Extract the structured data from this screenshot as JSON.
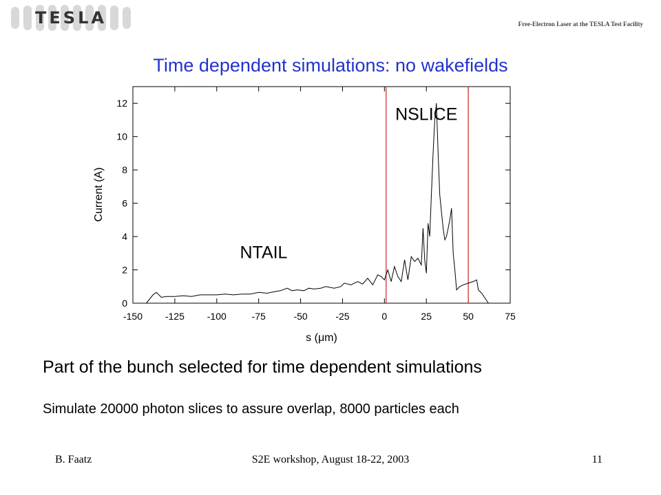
{
  "header": {
    "logo_text": "TESLA",
    "facility": "Free-Electron Laser at the TESLA Test Facility"
  },
  "slide": {
    "title": "Time dependent simulations: no wakefields",
    "body_line1": "Part of the bunch selected for time dependent simulations",
    "body_line2": "Simulate 20000 photon slices to assure overlap, 8000 particles each"
  },
  "footer": {
    "author": "B. Faatz",
    "event": "S2E workshop, August 18-22, 2003",
    "page": "11"
  },
  "chart_data": {
    "type": "line",
    "title": "",
    "xlabel": "s (μm)",
    "ylabel": "Current (A)",
    "xlim": [
      -150,
      75
    ],
    "ylim": [
      0,
      13
    ],
    "xticks": [
      -150,
      -125,
      -100,
      -75,
      -50,
      -25,
      0,
      25,
      50,
      75
    ],
    "yticks": [
      0,
      2,
      4,
      6,
      8,
      10,
      12
    ],
    "grid": false,
    "markers": [
      {
        "x": 1,
        "color": "#cc2222"
      },
      {
        "x": 50,
        "color": "#cc2222"
      }
    ],
    "annotations": [
      {
        "text": "NSLICE",
        "x": 25,
        "y": 11
      },
      {
        "text": "NTAIL",
        "x": -72,
        "y": 2.7
      }
    ],
    "series": [
      {
        "x": [
          -142,
          -138,
          -136,
          -133,
          -130,
          -125,
          -120,
          -115,
          -110,
          -105,
          -100,
          -95,
          -90,
          -85,
          -80,
          -75,
          -70,
          -65,
          -62,
          -58,
          -55,
          -52,
          -48,
          -45,
          -42,
          -38,
          -35,
          -30,
          -26,
          -24,
          -20,
          -16,
          -13,
          -10,
          -7,
          -4,
          -2,
          0,
          2,
          4,
          6,
          8,
          10,
          12,
          14,
          16,
          18,
          20,
          22,
          23,
          24,
          25,
          26,
          27,
          28,
          29,
          30,
          31,
          32,
          33,
          34,
          35,
          36,
          37,
          38,
          39,
          40,
          41,
          42,
          43,
          44,
          45,
          47,
          50,
          53,
          55,
          56,
          58,
          62
        ],
        "values": [
          0.0,
          0.5,
          0.65,
          0.35,
          0.4,
          0.4,
          0.45,
          0.4,
          0.5,
          0.5,
          0.5,
          0.55,
          0.5,
          0.55,
          0.55,
          0.65,
          0.6,
          0.7,
          0.75,
          0.9,
          0.75,
          0.8,
          0.75,
          0.9,
          0.85,
          0.9,
          1.0,
          0.9,
          1.0,
          1.2,
          1.1,
          1.3,
          1.15,
          1.5,
          1.1,
          1.7,
          1.6,
          1.4,
          2.0,
          1.3,
          2.2,
          1.6,
          1.3,
          2.6,
          1.4,
          2.8,
          2.5,
          2.7,
          2.3,
          4.5,
          2.6,
          1.8,
          4.8,
          4.0,
          6.5,
          9.0,
          11.0,
          12.0,
          9.0,
          6.5,
          5.5,
          4.5,
          3.8,
          4.0,
          4.5,
          5.0,
          5.7,
          3.0,
          2.0,
          0.8,
          0.9,
          1.0,
          1.1,
          1.2,
          1.3,
          1.4,
          0.8,
          0.6,
          0.0
        ]
      }
    ]
  }
}
